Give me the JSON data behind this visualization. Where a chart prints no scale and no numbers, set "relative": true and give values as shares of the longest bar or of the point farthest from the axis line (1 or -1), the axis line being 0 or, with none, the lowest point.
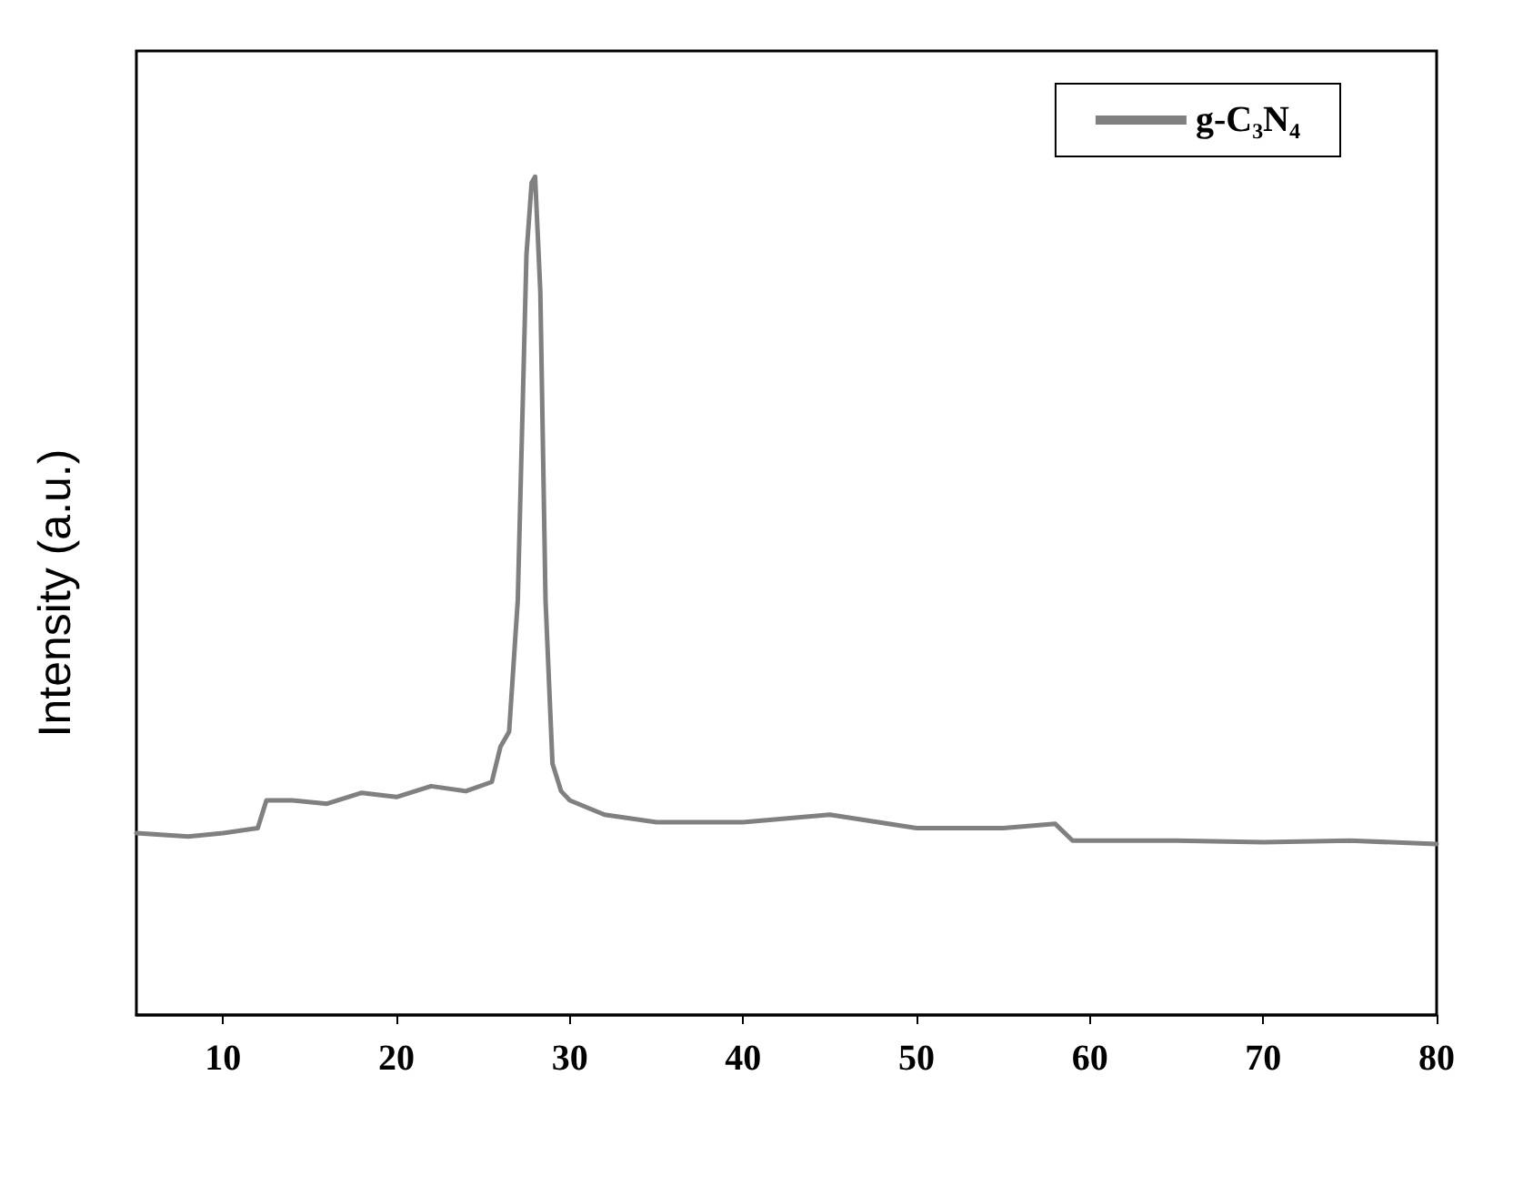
{
  "chart_data": {
    "type": "line",
    "ylabel": "Intensity (a.u.)",
    "relative": true,
    "xlim": [
      5,
      80
    ],
    "xticks": [
      10,
      20,
      30,
      40,
      50,
      60,
      70,
      80
    ],
    "grid": false,
    "legend": "top right",
    "marker": "none",
    "line_style": "solid",
    "x": [
      5,
      8,
      10,
      12,
      12.5,
      14,
      16,
      18,
      20,
      22,
      24,
      25.5,
      26,
      26.5,
      27,
      27.5,
      27.8,
      28,
      28.3,
      28.6,
      29,
      29.5,
      30,
      32,
      35,
      40,
      45,
      50,
      55,
      58,
      59,
      60,
      65,
      70,
      75,
      80
    ],
    "series": [
      {
        "name": "g-C₃N₄",
        "color": "#808080",
        "values": [
          0.217,
          0.213,
          0.217,
          0.223,
          0.256,
          0.256,
          0.252,
          0.265,
          0.26,
          0.273,
          0.267,
          0.278,
          0.32,
          0.338,
          0.495,
          0.907,
          0.993,
          1,
          0.863,
          0.495,
          0.3,
          0.267,
          0.256,
          0.239,
          0.23,
          0.23,
          0.239,
          0.223,
          0.223,
          0.228,
          0.208,
          0.208,
          0.208,
          0.206,
          0.208,
          0.204
        ]
      }
    ]
  }
}
